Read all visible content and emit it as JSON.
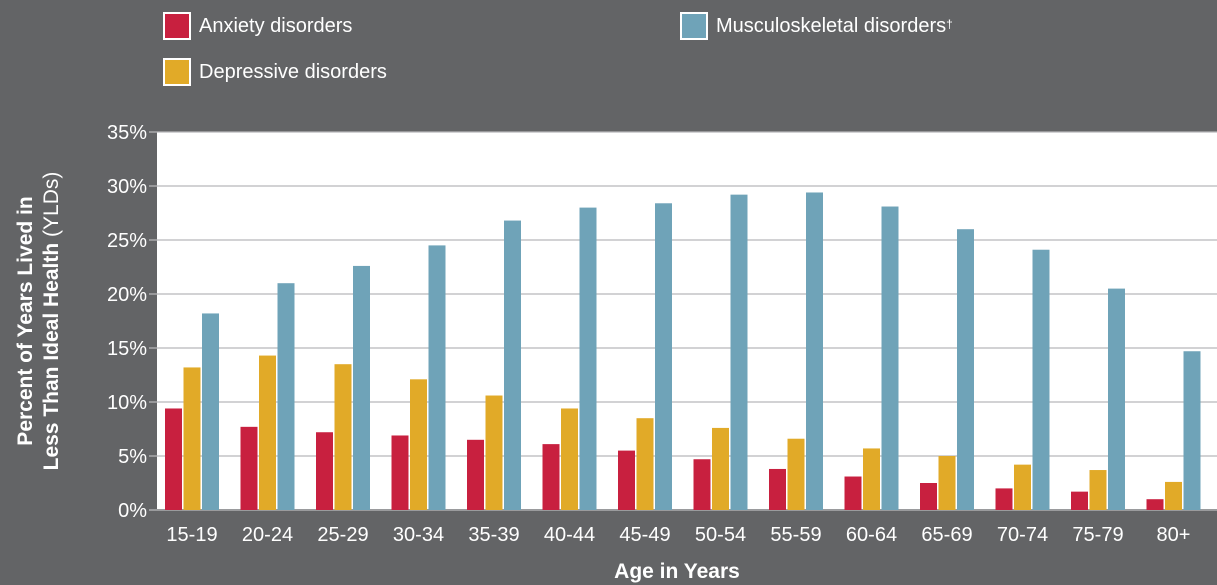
{
  "legend": {
    "anxiety": "Anxiety disorders",
    "depressive": "Depressive disorders",
    "musculo": "Musculoskeletal disorders",
    "musculo_mark": "†"
  },
  "axes": {
    "ylabel_line1": "Percent of Years Lived in",
    "ylabel_line2_bold": "Less Than Ideal Health",
    "ylabel_line2_normal": " (YLDs)",
    "xlabel": "Age in Years"
  },
  "colors": {
    "background": "#636466",
    "plot_area": "#ffffff",
    "anxiety": "#c8203f",
    "depressive": "#e1aa28",
    "musculo": "#6fa3b8",
    "grid": "#b7b8ba"
  },
  "chart_data": {
    "type": "bar",
    "categories": [
      "15-19",
      "20-24",
      "25-29",
      "30-34",
      "35-39",
      "40-44",
      "45-49",
      "50-54",
      "55-59",
      "60-64",
      "65-69",
      "70-74",
      "75-79",
      "80+"
    ],
    "series": [
      {
        "name": "Anxiety disorders",
        "values": [
          9.4,
          7.7,
          7.2,
          6.9,
          6.5,
          6.1,
          5.5,
          4.7,
          3.8,
          3.1,
          2.5,
          2.0,
          1.7,
          1.0
        ]
      },
      {
        "name": "Depressive disorders",
        "values": [
          13.2,
          14.3,
          13.5,
          12.1,
          10.6,
          9.4,
          8.5,
          7.6,
          6.6,
          5.7,
          5.0,
          4.2,
          3.7,
          2.6
        ]
      },
      {
        "name": "Musculoskeletal disorders†",
        "values": [
          18.2,
          21.0,
          22.6,
          24.5,
          26.8,
          28.0,
          28.4,
          29.2,
          29.4,
          28.1,
          26.0,
          24.1,
          20.5,
          14.7
        ]
      }
    ],
    "ylim": [
      0,
      35
    ],
    "yticks": [
      "0%",
      "5%",
      "10%",
      "15%",
      "20%",
      "25%",
      "30%",
      "35%"
    ],
    "ytick_values": [
      0,
      5,
      10,
      15,
      20,
      25,
      30,
      35
    ],
    "xlabel": "Age in Years",
    "ylabel": "Percent of Years Lived in Less Than Ideal Health (YLDs)",
    "grid": true,
    "legend_position": "top"
  }
}
